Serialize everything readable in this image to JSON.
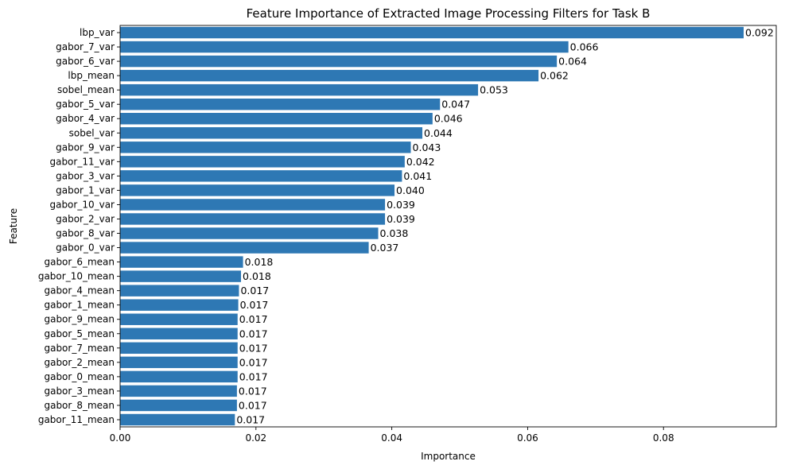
{
  "chart_data": {
    "type": "bar",
    "orientation": "horizontal",
    "title": "Feature Importance of Extracted Image Processing Filters for Task B",
    "xlabel": "Importance",
    "ylabel": "Feature",
    "xlim": [
      0,
      0.0966
    ],
    "xticks": [
      0.0,
      0.02,
      0.04,
      0.06,
      0.08
    ],
    "xtick_labels": [
      "0.00",
      "0.02",
      "0.04",
      "0.06",
      "0.08"
    ],
    "grid": false,
    "bar_color": "#2e78b4",
    "categories": [
      "lbp_var",
      "gabor_7_var",
      "gabor_6_var",
      "lbp_mean",
      "sobel_mean",
      "gabor_5_var",
      "gabor_4_var",
      "sobel_var",
      "gabor_9_var",
      "gabor_11_var",
      "gabor_3_var",
      "gabor_1_var",
      "gabor_10_var",
      "gabor_2_var",
      "gabor_8_var",
      "gabor_0_var",
      "gabor_6_mean",
      "gabor_10_mean",
      "gabor_4_mean",
      "gabor_1_mean",
      "gabor_9_mean",
      "gabor_5_mean",
      "gabor_7_mean",
      "gabor_2_mean",
      "gabor_0_mean",
      "gabor_3_mean",
      "gabor_8_mean",
      "gabor_11_mean"
    ],
    "values": [
      0.0918,
      0.066,
      0.0643,
      0.0616,
      0.0527,
      0.0471,
      0.046,
      0.0445,
      0.0428,
      0.0419,
      0.0415,
      0.0404,
      0.039,
      0.039,
      0.038,
      0.0366,
      0.0181,
      0.0178,
      0.0175,
      0.0174,
      0.0173,
      0.0173,
      0.0173,
      0.0173,
      0.0173,
      0.0172,
      0.0172,
      0.0169
    ],
    "value_labels": [
      "0.092",
      "0.066",
      "0.064",
      "0.062",
      "0.053",
      "0.047",
      "0.046",
      "0.044",
      "0.043",
      "0.042",
      "0.041",
      "0.040",
      "0.039",
      "0.039",
      "0.038",
      "0.037",
      "0.018",
      "0.018",
      "0.017",
      "0.017",
      "0.017",
      "0.017",
      "0.017",
      "0.017",
      "0.017",
      "0.017",
      "0.017",
      "0.017"
    ]
  }
}
